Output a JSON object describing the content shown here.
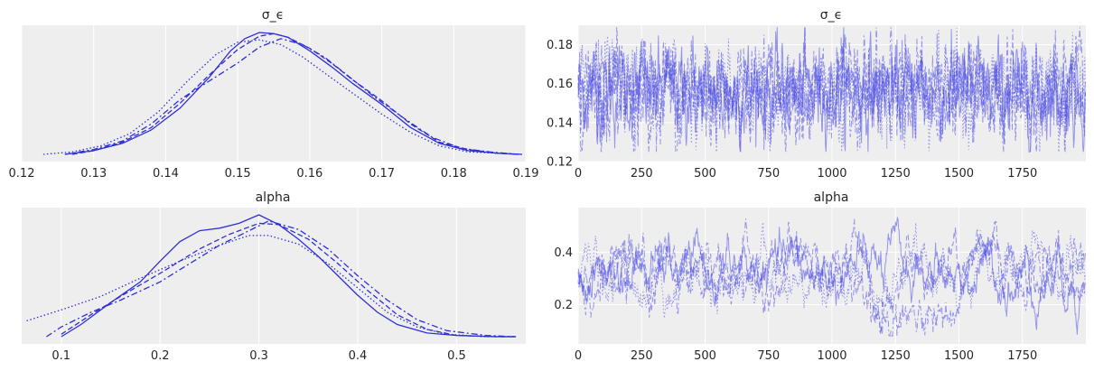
{
  "colors": {
    "background": "#eeeeee",
    "grid": "#ffffff",
    "line": "#2f2fd6",
    "trace": "#4b4be6"
  },
  "chart_data": [
    {
      "type": "line",
      "kind": "kde",
      "title": "σ_ϵ",
      "xlabel": "",
      "ylabel": "",
      "xlim": [
        0.12,
        0.19
      ],
      "xticks": [
        "0.12",
        "0.13",
        "0.14",
        "0.15",
        "0.16",
        "0.17",
        "0.18",
        "0.19"
      ],
      "grid": true,
      "y_axis_labels": false,
      "series": [
        {
          "dash": "solid",
          "x": [
            0.126,
            0.13,
            0.134,
            0.138,
            0.142,
            0.146,
            0.149,
            0.151,
            0.153,
            0.155,
            0.157,
            0.16,
            0.163,
            0.166,
            0.17,
            0.174,
            0.178,
            0.182,
            0.186,
            0.1895
          ],
          "y": [
            0.0,
            0.03,
            0.09,
            0.2,
            0.38,
            0.63,
            0.85,
            0.95,
            1.0,
            0.99,
            0.96,
            0.85,
            0.72,
            0.58,
            0.41,
            0.22,
            0.09,
            0.03,
            0.01,
            0.0
          ]
        },
        {
          "dash": "dashed",
          "x": [
            0.127,
            0.13,
            0.134,
            0.138,
            0.142,
            0.146,
            0.15,
            0.153,
            0.155,
            0.157,
            0.16,
            0.163,
            0.166,
            0.17,
            0.174,
            0.178,
            0.182,
            0.186,
            0.189
          ],
          "y": [
            0.0,
            0.03,
            0.1,
            0.22,
            0.42,
            0.65,
            0.86,
            0.97,
            0.99,
            0.96,
            0.87,
            0.75,
            0.61,
            0.44,
            0.25,
            0.1,
            0.04,
            0.01,
            0.0
          ]
        },
        {
          "dash": "dashdot",
          "x": [
            0.126,
            0.13,
            0.134,
            0.138,
            0.142,
            0.146,
            0.15,
            0.153,
            0.156,
            0.159,
            0.162,
            0.165,
            0.169,
            0.173,
            0.177,
            0.181,
            0.185,
            0.189
          ],
          "y": [
            0.0,
            0.04,
            0.11,
            0.25,
            0.45,
            0.6,
            0.75,
            0.88,
            0.95,
            0.9,
            0.8,
            0.66,
            0.47,
            0.3,
            0.14,
            0.05,
            0.02,
            0.0
          ]
        },
        {
          "dash": "dotted",
          "x": [
            0.123,
            0.127,
            0.131,
            0.135,
            0.139,
            0.143,
            0.147,
            0.15,
            0.153,
            0.156,
            0.159,
            0.162,
            0.166,
            0.17,
            0.174,
            0.178,
            0.182,
            0.186,
            0.189
          ],
          "y": [
            0.0,
            0.02,
            0.07,
            0.17,
            0.35,
            0.6,
            0.82,
            0.92,
            0.94,
            0.9,
            0.8,
            0.67,
            0.5,
            0.33,
            0.18,
            0.07,
            0.02,
            0.01,
            0.0
          ]
        }
      ]
    },
    {
      "type": "line",
      "kind": "trace",
      "title": "σ_ϵ",
      "xlabel": "",
      "ylabel": "",
      "xlim": [
        0,
        2000
      ],
      "ylim": [
        0.12,
        0.19
      ],
      "xticks": [
        "0",
        "250",
        "500",
        "750",
        "1000",
        "1250",
        "1500",
        "1750"
      ],
      "yticks": [
        "0.12",
        "0.14",
        "0.16",
        "0.18"
      ],
      "grid": true,
      "chains": 4,
      "draws": 2000,
      "series_summary": {
        "center": 0.156,
        "spread": 0.01,
        "min": 0.125,
        "max": 0.189
      }
    },
    {
      "type": "line",
      "kind": "kde",
      "title": "alpha",
      "xlabel": "",
      "ylabel": "",
      "xlim": [
        0.06,
        0.57
      ],
      "xticks": [
        "0.1",
        "0.2",
        "0.3",
        "0.4",
        "0.5"
      ],
      "grid": true,
      "y_axis_labels": false,
      "series": [
        {
          "dash": "solid",
          "x": [
            0.1,
            0.12,
            0.15,
            0.18,
            0.2,
            0.22,
            0.24,
            0.26,
            0.28,
            0.3,
            0.32,
            0.34,
            0.36,
            0.38,
            0.4,
            0.42,
            0.44,
            0.47,
            0.5,
            0.54,
            0.56
          ],
          "y": [
            0.0,
            0.1,
            0.28,
            0.45,
            0.62,
            0.78,
            0.87,
            0.89,
            0.93,
            1.0,
            0.92,
            0.8,
            0.66,
            0.5,
            0.34,
            0.2,
            0.1,
            0.03,
            0.01,
            0.0,
            0.0
          ]
        },
        {
          "dash": "dashed",
          "x": [
            0.1,
            0.13,
            0.16,
            0.2,
            0.24,
            0.27,
            0.3,
            0.32,
            0.35,
            0.38,
            0.41,
            0.44,
            0.47,
            0.5,
            0.54,
            0.56
          ],
          "y": [
            0.02,
            0.18,
            0.33,
            0.52,
            0.72,
            0.84,
            0.93,
            0.92,
            0.8,
            0.6,
            0.38,
            0.18,
            0.06,
            0.01,
            0.0,
            0.0
          ]
        },
        {
          "dash": "dashdot",
          "x": [
            0.085,
            0.1,
            0.13,
            0.16,
            0.2,
            0.23,
            0.26,
            0.29,
            0.31,
            0.34,
            0.37,
            0.4,
            0.43,
            0.46,
            0.49,
            0.53,
            0.56
          ],
          "y": [
            0.0,
            0.08,
            0.2,
            0.3,
            0.45,
            0.6,
            0.75,
            0.87,
            0.95,
            0.88,
            0.72,
            0.5,
            0.3,
            0.14,
            0.05,
            0.01,
            0.0
          ]
        },
        {
          "dash": "dotted",
          "x": [
            0.065,
            0.1,
            0.14,
            0.18,
            0.22,
            0.26,
            0.29,
            0.31,
            0.34,
            0.37,
            0.4,
            0.43,
            0.46,
            0.49,
            0.53,
            0.56
          ],
          "y": [
            0.13,
            0.22,
            0.33,
            0.48,
            0.62,
            0.75,
            0.83,
            0.83,
            0.76,
            0.6,
            0.4,
            0.2,
            0.08,
            0.02,
            0.0,
            0.0
          ]
        }
      ]
    },
    {
      "type": "line",
      "kind": "trace",
      "title": "alpha",
      "xlabel": "",
      "ylabel": "",
      "xlim": [
        0,
        2000
      ],
      "ylim": [
        0.05,
        0.57
      ],
      "xticks": [
        "0",
        "250",
        "500",
        "750",
        "1000",
        "1250",
        "1500",
        "1750"
      ],
      "yticks": [
        "0.2",
        "0.4"
      ],
      "grid": true,
      "chains": 4,
      "draws": 2000,
      "series_summary": {
        "center": 0.32,
        "spread": 0.06,
        "min": 0.08,
        "max": 0.56
      }
    }
  ]
}
